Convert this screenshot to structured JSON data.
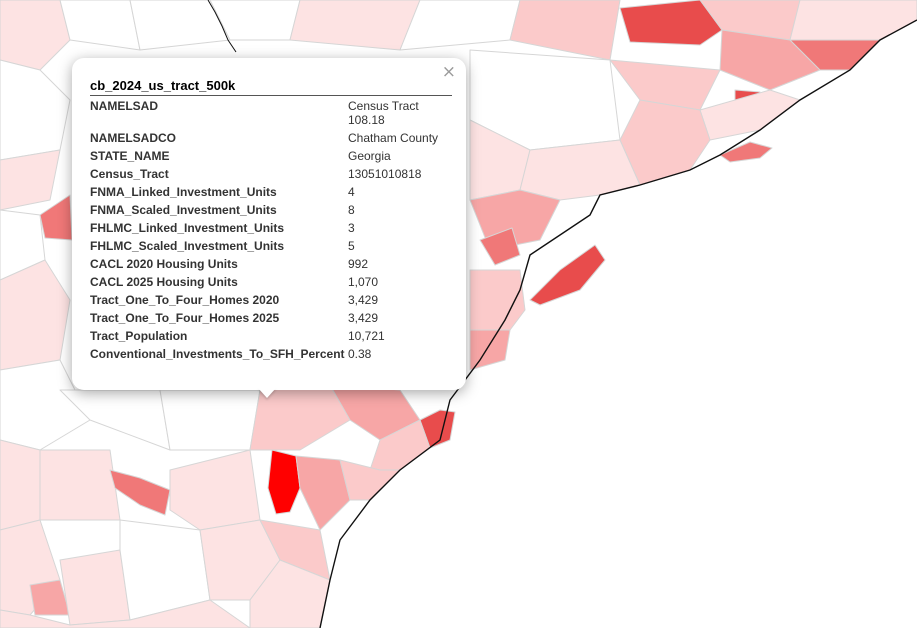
{
  "layer": "cb_2024_us_tract_500k",
  "close_symbol": "×",
  "attributes": [
    {
      "key": "NAMELSAD",
      "value": "Census Tract 108.18"
    },
    {
      "key": "NAMELSADCO",
      "value": "Chatham County"
    },
    {
      "key": "STATE_NAME",
      "value": "Georgia"
    },
    {
      "key": "Census_Tract",
      "value": "13051010818"
    },
    {
      "key": "FNMA_Linked_Investment_Units",
      "value": "4"
    },
    {
      "key": "FNMA_Scaled_Investment_Units",
      "value": "8"
    },
    {
      "key": "FHLMC_Linked_Investment_Units",
      "value": "3"
    },
    {
      "key": "FHLMC_Scaled_Investment_Units",
      "value": "5"
    },
    {
      "key": "CACL 2020 Housing Units",
      "value": "992"
    },
    {
      "key": "CACL 2025 Housing Units",
      "value": "1,070"
    },
    {
      "key": "Tract_One_To_Four_Homes 2020",
      "value": "3,429"
    },
    {
      "key": "Tract_One_To_Four_Homes 2025",
      "value": "3,429"
    },
    {
      "key": "Tract_Population",
      "value": "10,721"
    },
    {
      "key": "Conventional_Investments_To_SFH_Percent",
      "value": "0.38"
    }
  ],
  "colors": {
    "ocean": "#ffffff",
    "tract_border": "#d6d6d6",
    "choropleth": [
      "#ffffff",
      "#fde3e3",
      "#fbcaca",
      "#f7a6a6",
      "#f07878",
      "#e84c4c",
      "#ff0000"
    ]
  }
}
